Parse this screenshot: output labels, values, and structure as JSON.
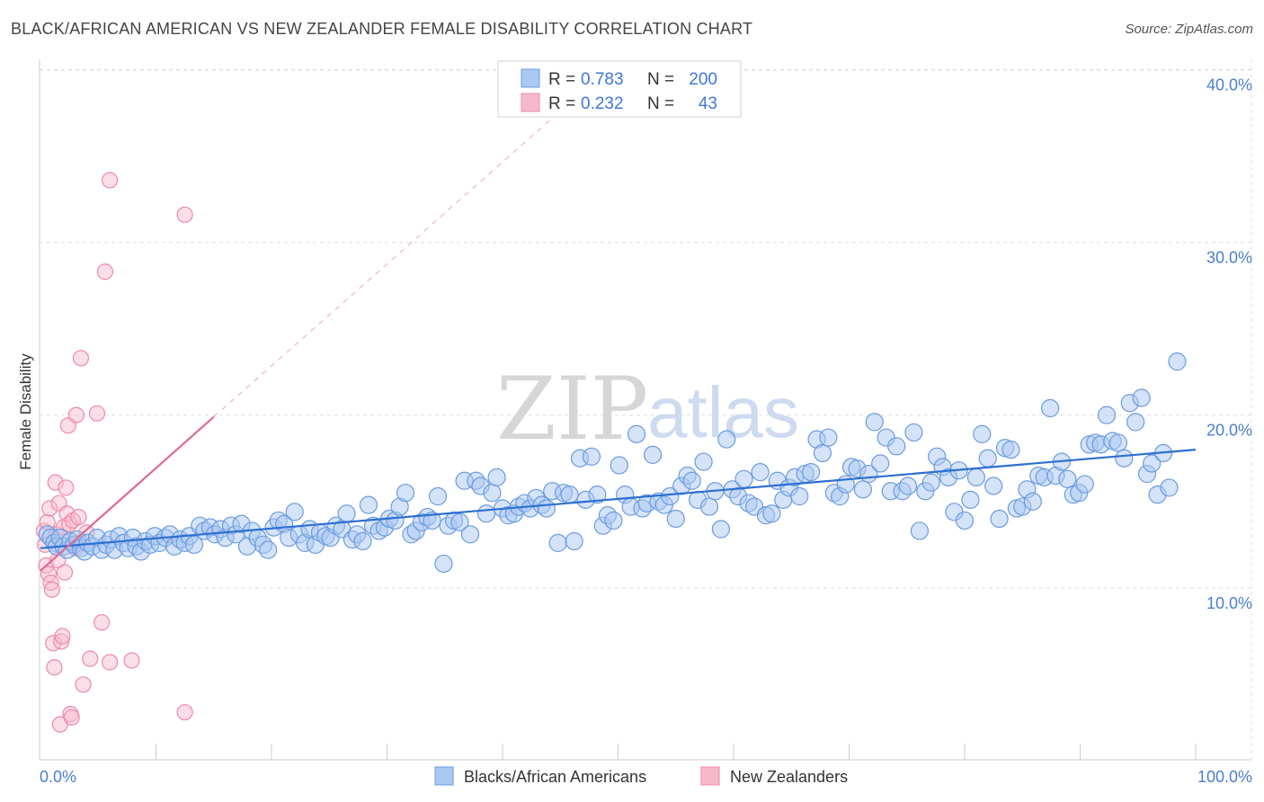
{
  "header": {
    "title": "BLACK/AFRICAN AMERICAN VS NEW ZEALANDER FEMALE DISABILITY CORRELATION CHART",
    "source": "Source: ZipAtlas.com"
  },
  "watermark": {
    "zip": "ZIP",
    "atlas": "atlas"
  },
  "legend_box": {
    "rows": [
      {
        "r_label": "R =",
        "r_value": "0.783",
        "n_label": "N =",
        "n_value": "200",
        "color": "#a9c8f2"
      },
      {
        "r_label": "R =",
        "r_value": "0.232",
        "n_label": "N =",
        "n_value": "43",
        "color": "#f6b9cb"
      }
    ]
  },
  "bottom_legend": {
    "items": [
      {
        "label": "Blacks/African Americans",
        "color": "#a9c8f2"
      },
      {
        "label": "New Zealanders",
        "color": "#f6b9cb"
      }
    ]
  },
  "colors": {
    "blue_fill": "#a9c8f2",
    "blue_stroke": "#6b9be0",
    "blue_line": "#2e6fd1",
    "pink_fill": "#f6b9cb",
    "pink_stroke": "#ec8aa8",
    "pink_line": "#e06a93",
    "grid": "#dddddd",
    "axis": "#cccccc",
    "tick_text": "#4a7fd0"
  },
  "chart_data": {
    "type": "scatter",
    "title": "BLACK/AFRICAN AMERICAN VS NEW ZEALANDER FEMALE DISABILITY CORRELATION CHART",
    "xlabel": "",
    "ylabel": "Female Disability",
    "xlim": [
      0,
      100
    ],
    "ylim": [
      0,
      42
    ],
    "x_tick_labels": [
      {
        "value": 0,
        "label": "0.0%"
      },
      {
        "value": 100,
        "label": "100.0%"
      }
    ],
    "y_tick_labels": [
      {
        "value": 10,
        "label": "10.0%"
      },
      {
        "value": 20,
        "label": "20.0%"
      },
      {
        "value": 30,
        "label": "30.0%"
      },
      {
        "value": 40,
        "label": "40.0%"
      }
    ],
    "series": [
      {
        "name": "Blacks/African Americans",
        "r": 0.783,
        "n": 200,
        "trend": {
          "x": [
            0,
            100
          ],
          "y": [
            12.3,
            18.0
          ]
        },
        "points": [
          [
            0.6,
            13.1
          ],
          [
            0.9,
            12.9
          ],
          [
            1.2,
            12.6
          ],
          [
            1.4,
            12.4
          ],
          [
            1.7,
            12.9
          ],
          [
            2.0,
            12.4
          ],
          [
            2.3,
            12.2
          ],
          [
            2.6,
            12.7
          ],
          [
            2.9,
            12.5
          ],
          [
            3.2,
            12.8
          ],
          [
            3.5,
            12.3
          ],
          [
            3.8,
            12.1
          ],
          [
            4.1,
            12.6
          ],
          [
            4.5,
            12.4
          ],
          [
            4.9,
            12.9
          ],
          [
            5.3,
            12.2
          ],
          [
            5.7,
            12.5
          ],
          [
            6.1,
            12.8
          ],
          [
            6.4,
            12.2
          ],
          [
            6.8,
            13.0
          ],
          [
            7.2,
            12.6
          ],
          [
            7.6,
            12.3
          ],
          [
            8.0,
            12.9
          ],
          [
            8.3,
            12.4
          ],
          [
            8.7,
            12.1
          ],
          [
            9.1,
            12.7
          ],
          [
            9.5,
            12.5
          ],
          [
            9.9,
            13.0
          ],
          [
            10.3,
            12.6
          ],
          [
            10.8,
            12.9
          ],
          [
            11.2,
            13.1
          ],
          [
            11.6,
            12.4
          ],
          [
            12.1,
            12.8
          ],
          [
            12.5,
            12.6
          ],
          [
            12.9,
            13.0
          ],
          [
            13.3,
            12.5
          ],
          [
            13.8,
            13.6
          ],
          [
            14.2,
            13.3
          ],
          [
            14.7,
            13.5
          ],
          [
            15.1,
            13.1
          ],
          [
            15.6,
            13.4
          ],
          [
            16.0,
            12.9
          ],
          [
            16.5,
            13.6
          ],
          [
            16.9,
            13.1
          ],
          [
            17.4,
            13.7
          ],
          [
            17.9,
            12.4
          ],
          [
            18.3,
            13.3
          ],
          [
            18.8,
            12.9
          ],
          [
            19.3,
            12.5
          ],
          [
            19.7,
            12.2
          ],
          [
            20.2,
            13.5
          ],
          [
            20.6,
            13.9
          ],
          [
            21.1,
            13.7
          ],
          [
            21.5,
            12.9
          ],
          [
            22.0,
            14.4
          ],
          [
            22.4,
            13.1
          ],
          [
            22.9,
            12.6
          ],
          [
            23.3,
            13.4
          ],
          [
            23.8,
            12.5
          ],
          [
            24.2,
            13.2
          ],
          [
            24.7,
            13.0
          ],
          [
            25.1,
            12.9
          ],
          [
            25.6,
            13.6
          ],
          [
            26.1,
            13.4
          ],
          [
            26.5,
            14.3
          ],
          [
            27.0,
            12.8
          ],
          [
            27.4,
            13.1
          ],
          [
            27.9,
            12.7
          ],
          [
            28.4,
            14.8
          ],
          [
            28.8,
            13.6
          ],
          [
            29.3,
            13.3
          ],
          [
            29.8,
            13.5
          ],
          [
            30.2,
            14.0
          ],
          [
            30.7,
            13.9
          ],
          [
            31.1,
            14.7
          ],
          [
            31.6,
            15.5
          ],
          [
            32.1,
            13.1
          ],
          [
            32.5,
            13.3
          ],
          [
            33.0,
            13.8
          ],
          [
            33.5,
            14.1
          ],
          [
            33.9,
            13.9
          ],
          [
            34.4,
            15.3
          ],
          [
            34.9,
            11.4
          ],
          [
            35.3,
            13.6
          ],
          [
            35.8,
            13.9
          ],
          [
            36.3,
            13.8
          ],
          [
            36.7,
            16.2
          ],
          [
            37.2,
            13.1
          ],
          [
            37.7,
            16.2
          ],
          [
            38.1,
            15.9
          ],
          [
            38.6,
            14.3
          ],
          [
            39.1,
            15.5
          ],
          [
            39.5,
            16.4
          ],
          [
            40.0,
            14.6
          ],
          [
            40.5,
            14.2
          ],
          [
            41.0,
            14.3
          ],
          [
            41.4,
            14.7
          ],
          [
            41.9,
            14.9
          ],
          [
            42.4,
            14.6
          ],
          [
            42.9,
            15.2
          ],
          [
            43.4,
            14.8
          ],
          [
            43.8,
            14.6
          ],
          [
            44.3,
            15.6
          ],
          [
            44.8,
            12.6
          ],
          [
            45.3,
            15.5
          ],
          [
            45.8,
            15.4
          ],
          [
            46.2,
            12.7
          ],
          [
            46.7,
            17.5
          ],
          [
            47.2,
            15.1
          ],
          [
            47.7,
            17.6
          ],
          [
            48.2,
            15.4
          ],
          [
            48.7,
            13.6
          ],
          [
            49.1,
            14.2
          ],
          [
            49.6,
            13.9
          ],
          [
            50.1,
            17.1
          ],
          [
            50.6,
            15.4
          ],
          [
            51.1,
            14.7
          ],
          [
            51.6,
            18.9
          ],
          [
            52.1,
            14.6
          ],
          [
            52.5,
            14.9
          ],
          [
            53.0,
            17.7
          ],
          [
            53.5,
            15.0
          ],
          [
            54.0,
            14.8
          ],
          [
            54.5,
            15.3
          ],
          [
            55.0,
            14.0
          ],
          [
            55.5,
            15.9
          ],
          [
            56.0,
            16.5
          ],
          [
            56.4,
            16.2
          ],
          [
            56.9,
            15.1
          ],
          [
            57.4,
            17.3
          ],
          [
            57.9,
            14.7
          ],
          [
            58.4,
            15.6
          ],
          [
            58.9,
            13.4
          ],
          [
            59.4,
            18.6
          ],
          [
            59.9,
            15.7
          ],
          [
            60.4,
            15.3
          ],
          [
            60.9,
            16.3
          ],
          [
            61.3,
            14.9
          ],
          [
            61.8,
            14.7
          ],
          [
            62.3,
            16.7
          ],
          [
            62.8,
            14.2
          ],
          [
            63.3,
            14.3
          ],
          [
            63.8,
            16.2
          ],
          [
            64.3,
            15.1
          ],
          [
            64.8,
            15.8
          ],
          [
            65.3,
            16.4
          ],
          [
            65.7,
            15.3
          ],
          [
            66.2,
            16.6
          ],
          [
            66.7,
            16.7
          ],
          [
            67.2,
            18.6
          ],
          [
            67.7,
            17.8
          ],
          [
            68.2,
            18.7
          ],
          [
            68.7,
            15.5
          ],
          [
            69.2,
            15.3
          ],
          [
            69.7,
            16.0
          ],
          [
            70.2,
            17.0
          ],
          [
            70.7,
            16.9
          ],
          [
            71.2,
            15.7
          ],
          [
            71.7,
            16.6
          ],
          [
            72.2,
            19.6
          ],
          [
            72.7,
            17.2
          ],
          [
            73.2,
            18.7
          ],
          [
            73.6,
            15.6
          ],
          [
            74.1,
            18.2
          ],
          [
            74.6,
            15.6
          ],
          [
            75.1,
            15.9
          ],
          [
            75.6,
            19.0
          ],
          [
            76.1,
            13.3
          ],
          [
            76.6,
            15.6
          ],
          [
            77.1,
            16.1
          ],
          [
            77.6,
            17.6
          ],
          [
            78.1,
            17.0
          ],
          [
            78.6,
            16.4
          ],
          [
            79.1,
            14.4
          ],
          [
            79.5,
            16.8
          ],
          [
            80.0,
            13.9
          ],
          [
            80.5,
            15.1
          ],
          [
            81.0,
            16.4
          ],
          [
            81.5,
            18.9
          ],
          [
            82.0,
            17.5
          ],
          [
            82.5,
            15.9
          ],
          [
            83.0,
            14.0
          ],
          [
            83.5,
            18.1
          ],
          [
            84.0,
            18.0
          ],
          [
            84.5,
            14.6
          ],
          [
            85.0,
            14.7
          ],
          [
            85.4,
            15.7
          ],
          [
            85.9,
            15.0
          ],
          [
            86.4,
            16.5
          ],
          [
            86.9,
            16.4
          ],
          [
            87.4,
            20.4
          ],
          [
            87.9,
            16.5
          ],
          [
            88.4,
            17.3
          ],
          [
            88.9,
            16.3
          ],
          [
            89.4,
            15.4
          ],
          [
            89.9,
            15.5
          ],
          [
            90.4,
            16.0
          ],
          [
            90.8,
            18.3
          ],
          [
            91.3,
            18.4
          ],
          [
            91.8,
            18.3
          ],
          [
            92.3,
            20.0
          ],
          [
            92.8,
            18.5
          ],
          [
            93.3,
            18.4
          ],
          [
            93.8,
            17.5
          ],
          [
            94.3,
            20.7
          ],
          [
            94.8,
            19.6
          ],
          [
            95.3,
            21.0
          ],
          [
            95.8,
            16.6
          ],
          [
            96.2,
            17.2
          ],
          [
            96.7,
            15.4
          ],
          [
            97.2,
            17.8
          ],
          [
            97.7,
            15.8
          ],
          [
            98.4,
            23.1
          ]
        ]
      },
      {
        "name": "New Zealanders",
        "r": 0.232,
        "n": 43,
        "trend": {
          "x": [
            0,
            15
          ],
          "y": [
            11.0,
            19.9
          ]
        },
        "trend_extended": {
          "x": [
            15,
            45
          ],
          "y": [
            19.9,
            37.6
          ]
        },
        "points": [
          [
            0.3,
            13.3
          ],
          [
            0.4,
            12.5
          ],
          [
            0.5,
            11.3
          ],
          [
            0.6,
            13.8
          ],
          [
            0.7,
            10.8
          ],
          [
            0.8,
            14.6
          ],
          [
            0.9,
            10.3
          ],
          [
            1.0,
            9.9
          ],
          [
            1.1,
            6.8
          ],
          [
            1.2,
            5.4
          ],
          [
            1.3,
            16.1
          ],
          [
            1.4,
            13.1
          ],
          [
            1.5,
            11.6
          ],
          [
            1.6,
            14.9
          ],
          [
            1.7,
            2.1
          ],
          [
            1.8,
            6.9
          ],
          [
            1.9,
            7.2
          ],
          [
            2.0,
            13.5
          ],
          [
            2.1,
            10.9
          ],
          [
            2.2,
            15.8
          ],
          [
            2.3,
            14.3
          ],
          [
            2.4,
            19.4
          ],
          [
            2.5,
            13.7
          ],
          [
            2.6,
            2.7
          ],
          [
            2.7,
            2.5
          ],
          [
            2.8,
            13.9
          ],
          [
            2.9,
            12.5
          ],
          [
            3.0,
            12.3
          ],
          [
            3.1,
            20.0
          ],
          [
            3.2,
            12.6
          ],
          [
            3.3,
            14.1
          ],
          [
            3.5,
            23.3
          ],
          [
            3.7,
            4.4
          ],
          [
            4.0,
            13.2
          ],
          [
            4.3,
            5.9
          ],
          [
            4.9,
            20.1
          ],
          [
            5.3,
            8.0
          ],
          [
            5.6,
            28.3
          ],
          [
            6.0,
            5.7
          ],
          [
            6.0,
            33.6
          ],
          [
            7.9,
            5.8
          ],
          [
            12.5,
            31.6
          ],
          [
            12.5,
            2.8
          ]
        ]
      }
    ]
  }
}
